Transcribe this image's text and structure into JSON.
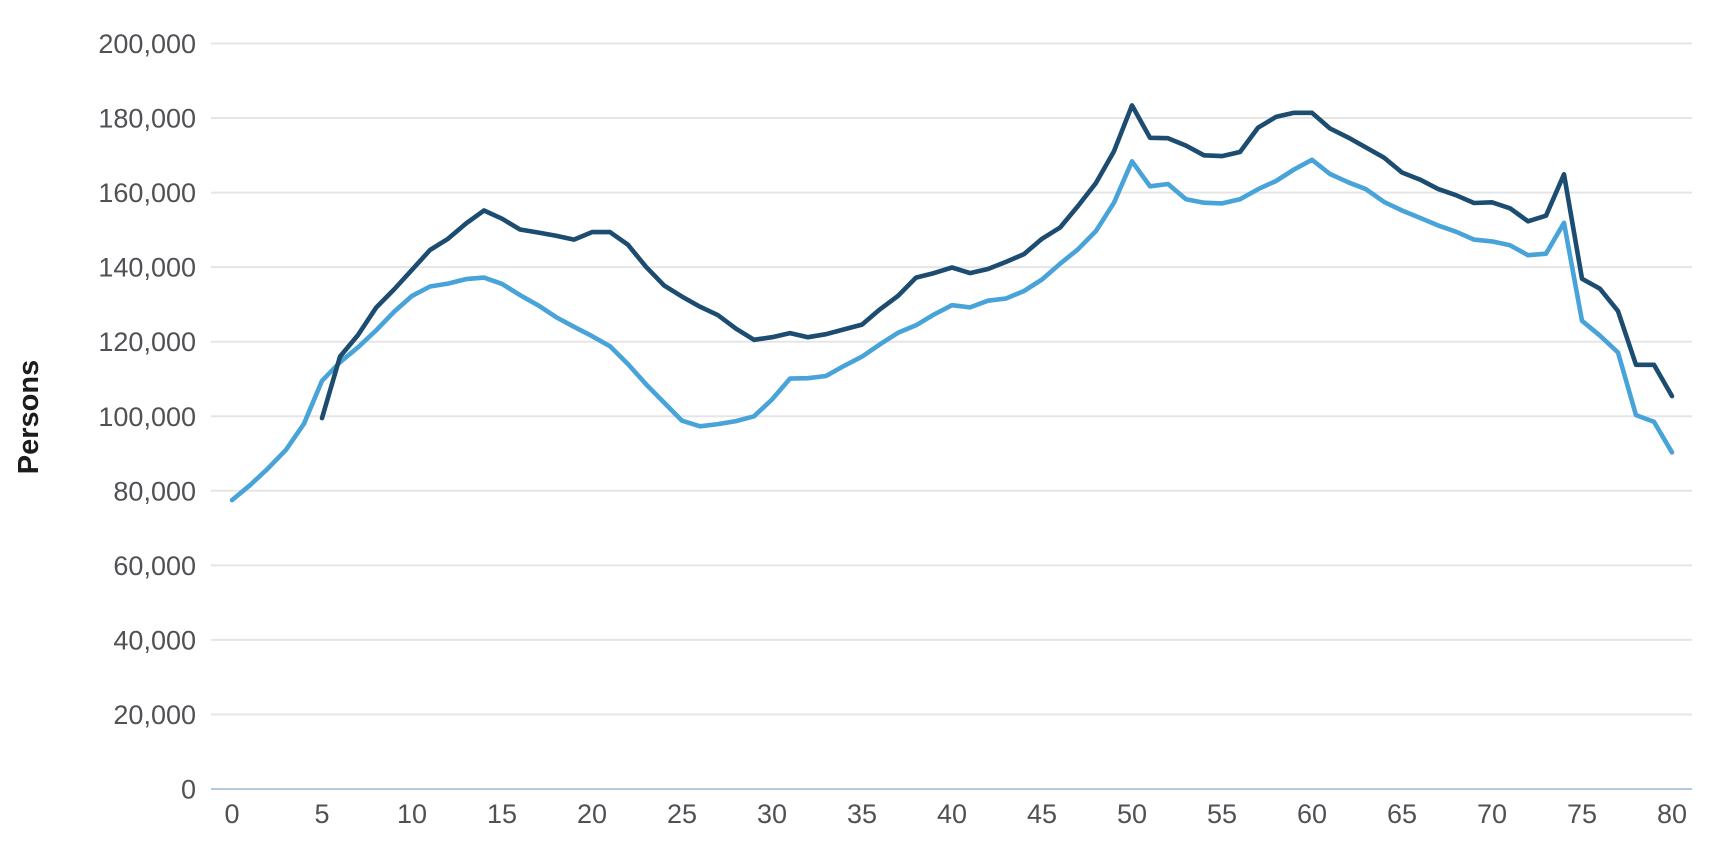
{
  "chart_data": {
    "type": "line",
    "title": "",
    "xlabel": "",
    "ylabel": "Persons",
    "xlim": [
      0,
      80
    ],
    "ylim": [
      0,
      200000
    ],
    "x_tick_labels": [
      "0",
      "5",
      "10",
      "15",
      "20",
      "25",
      "30",
      "35",
      "40",
      "45",
      "50",
      "55",
      "60",
      "65",
      "70",
      "75",
      "80"
    ],
    "x_tick_values": [
      0,
      5,
      10,
      15,
      20,
      25,
      30,
      35,
      40,
      45,
      50,
      55,
      60,
      65,
      70,
      75,
      80
    ],
    "y_tick_labels": [
      "0",
      "20,000",
      "40,000",
      "60,000",
      "80,000",
      "100,000",
      "120,000",
      "140,000",
      "160,000",
      "180,000",
      "200,000"
    ],
    "y_tick_values": [
      0,
      20000,
      40000,
      60000,
      80000,
      100000,
      120000,
      140000,
      160000,
      180000,
      200000
    ],
    "grid": "horizontal-only",
    "legend_position": "none",
    "series": [
      {
        "name": "light-blue-series",
        "color": "#48a3d9",
        "start_x": 0,
        "x_step": 1,
        "values": [
          77500,
          81500,
          86000,
          91000,
          98000,
          109500,
          114500,
          118500,
          123000,
          128000,
          132300,
          134800,
          135600,
          136800,
          137200,
          135500,
          132500,
          129800,
          126600,
          124000,
          121500,
          118800,
          114000,
          108600,
          103700,
          98800,
          97300,
          97900,
          98700,
          100000,
          104500,
          110100,
          110200,
          110800,
          113500,
          116000,
          119300,
          122400,
          124400,
          127300,
          129800,
          129200,
          131000,
          131600,
          133600,
          136700,
          140900,
          144800,
          149700,
          157300,
          168400,
          161700,
          162300,
          158200,
          157300,
          157100,
          158200,
          160900,
          163100,
          166200,
          168800,
          165000,
          162800,
          160900,
          157500,
          155200,
          153200,
          151200,
          149500,
          147400,
          146900,
          145900,
          143200,
          143600,
          151900,
          125600,
          121600,
          117100,
          100300,
          98500,
          90300
        ]
      },
      {
        "name": "dark-navy-series",
        "color": "#1c4c70",
        "start_x": 5,
        "x_step": 1,
        "values": [
          99500,
          116000,
          121800,
          129100,
          134000,
          139300,
          144600,
          147600,
          151700,
          155200,
          153000,
          150100,
          149300,
          148400,
          147400,
          149400,
          149400,
          146000,
          140100,
          135100,
          132100,
          129400,
          127100,
          123500,
          120500,
          121200,
          122300,
          121200,
          122000,
          123300,
          124600,
          128700,
          132300,
          137200,
          138400,
          139900,
          138400,
          139500,
          141400,
          143500,
          147600,
          150600,
          156400,
          162600,
          171100,
          183400,
          174700,
          174600,
          172600,
          170000,
          169800,
          170900,
          177400,
          180300,
          181400,
          181400,
          177200,
          174800,
          172100,
          169400,
          165400,
          163500,
          161000,
          159300,
          157200,
          157400,
          155800,
          152300,
          153800,
          164900,
          136900,
          134200,
          128200,
          113800,
          113800,
          105400
        ]
      }
    ],
    "style": {
      "gridline_color": "#e5e5e7",
      "baseline_color": "#b5c7e2",
      "tick_text_color": "#505155",
      "axis_title_color": "#1c1c1e",
      "line_width": 4.6
    }
  }
}
